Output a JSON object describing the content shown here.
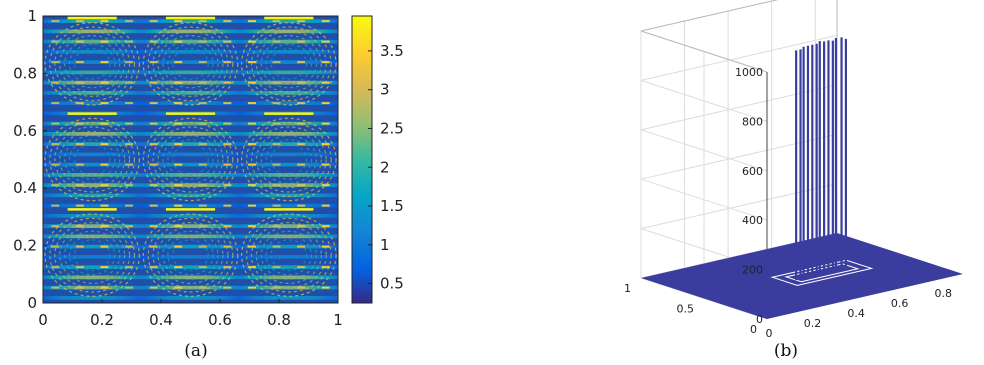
{
  "chart_data": [
    {
      "type": "heatmap",
      "caption": "(a)",
      "xlim": [
        0,
        1
      ],
      "ylim": [
        0,
        1
      ],
      "xticks": [
        "0",
        "0.2",
        "0.4",
        "0.6",
        "0.8",
        "1"
      ],
      "yticks": [
        "0",
        "0.2",
        "0.4",
        "0.6",
        "0.8",
        "1"
      ],
      "colorbar": {
        "range": [
          0.25,
          3.95
        ],
        "ticks": [
          "0.5",
          "1",
          "1.5",
          "2",
          "2.5",
          "3",
          "3.5"
        ],
        "colormap": "parula"
      },
      "field": {
        "horizontal_stripe_rows": 28,
        "cell_columns": 3,
        "cell_rows": 3,
        "base_value": 0.35,
        "peak_value": 3.9
      }
    },
    {
      "type": "bar3d",
      "caption": "(b)",
      "xlim": [
        0,
        0.9
      ],
      "ylim": [
        0,
        1
      ],
      "zlim": [
        0,
        1000
      ],
      "xticks": [
        "0",
        "0.2",
        "0.4",
        "0.6",
        "0.8"
      ],
      "yticks": [
        "0",
        "0.5",
        "1"
      ],
      "zticks": [
        "0",
        "200",
        "400",
        "600",
        "800",
        "1000"
      ],
      "grid": true,
      "surface_color": "#3b3d9e",
      "spikes": [
        {
          "x": 0.4,
          "y": 0.46,
          "z": 930
        },
        {
          "x": 0.42,
          "y": 0.46,
          "z": 930
        },
        {
          "x": 0.44,
          "y": 0.47,
          "z": 935
        },
        {
          "x": 0.46,
          "y": 0.47,
          "z": 935
        },
        {
          "x": 0.48,
          "y": 0.47,
          "z": 935
        },
        {
          "x": 0.5,
          "y": 0.47,
          "z": 935
        },
        {
          "x": 0.52,
          "y": 0.48,
          "z": 940
        },
        {
          "x": 0.54,
          "y": 0.48,
          "z": 935
        },
        {
          "x": 0.56,
          "y": 0.48,
          "z": 935
        },
        {
          "x": 0.58,
          "y": 0.48,
          "z": 930
        },
        {
          "x": 0.6,
          "y": 0.49,
          "z": 935
        },
        {
          "x": 0.62,
          "y": 0.48,
          "z": 935
        },
        {
          "x": 0.64,
          "y": 0.48,
          "z": 925
        }
      ]
    }
  ]
}
